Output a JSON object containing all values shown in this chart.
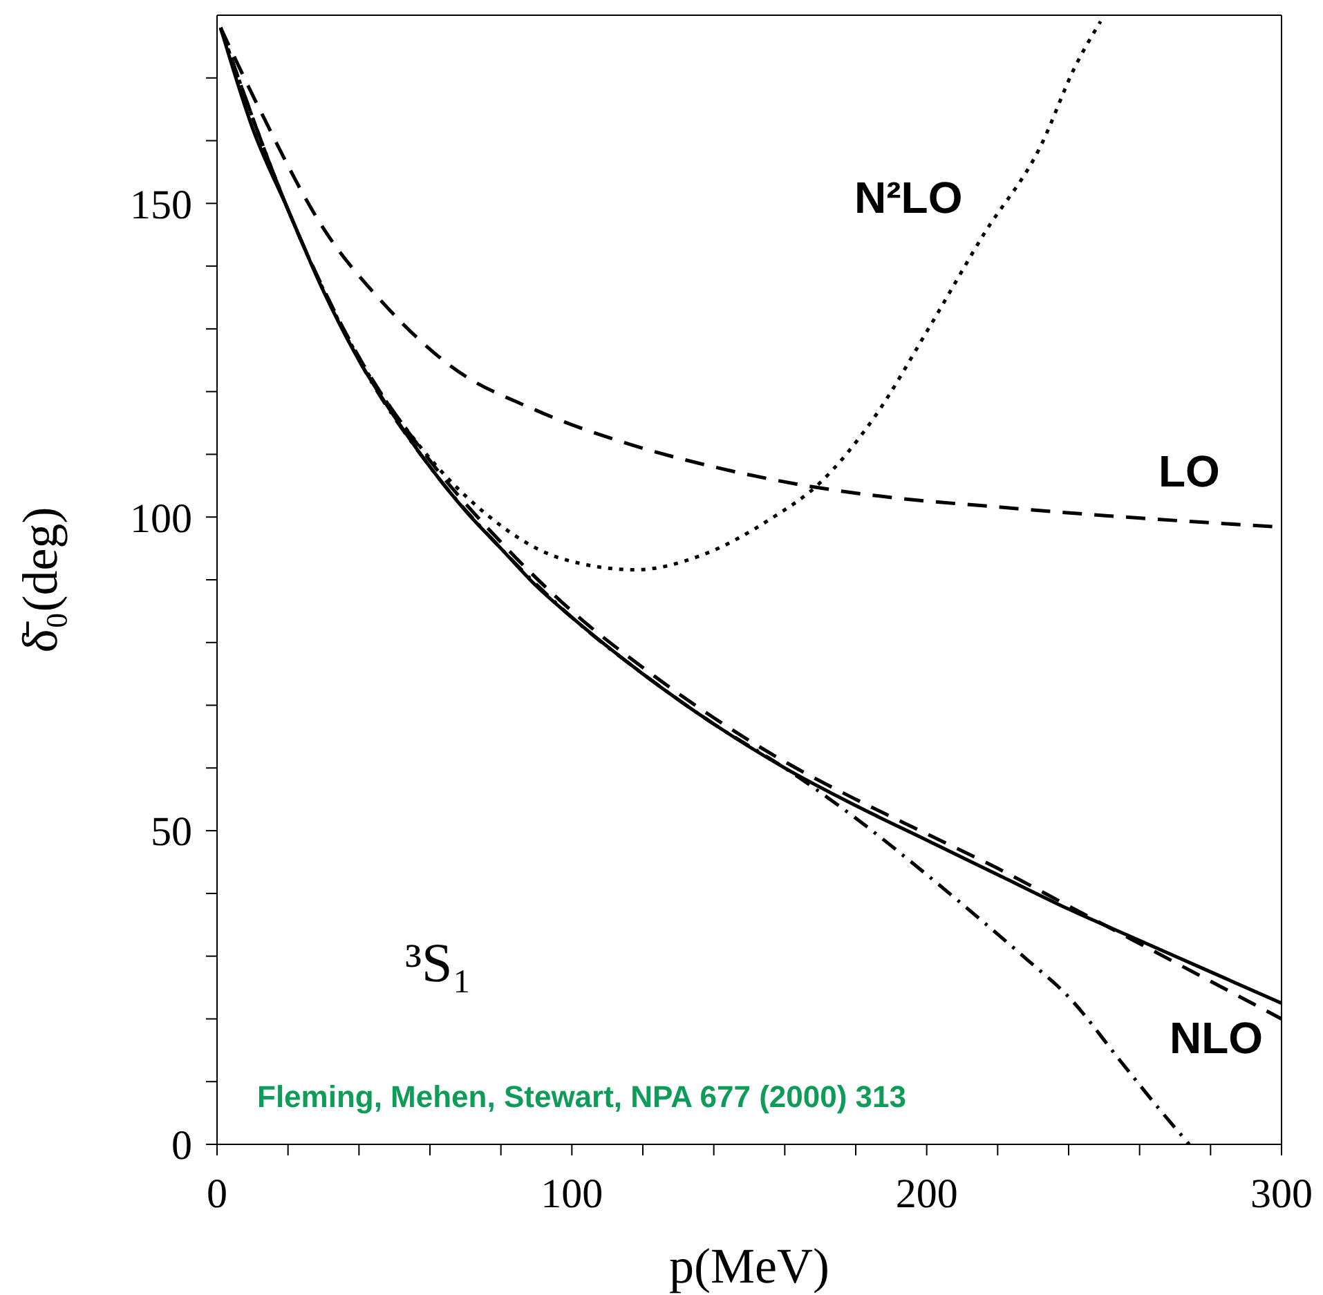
{
  "chart_data": {
    "type": "line",
    "xlabel": "p(MeV)",
    "ylabel": "δ̄₀(deg)",
    "xlim": [
      0,
      300
    ],
    "ylim": [
      0,
      180
    ],
    "xticks": [
      0,
      {
        "value": 20,
        "label": null
      },
      {
        "value": 40,
        "label": null
      },
      {
        "value": 60,
        "label": null
      },
      {
        "value": 80,
        "label": null
      },
      100,
      {
        "value": 120,
        "label": null
      },
      {
        "value": 140,
        "label": null
      },
      {
        "value": 160,
        "label": null
      },
      {
        "value": 180,
        "label": null
      },
      200,
      {
        "value": 220,
        "label": null
      },
      {
        "value": 240,
        "label": null
      },
      {
        "value": 260,
        "label": null
      },
      {
        "value": 280,
        "label": null
      },
      300
    ],
    "yticks": [
      0,
      {
        "value": 10,
        "label": null
      },
      {
        "value": 20,
        "label": null
      },
      {
        "value": 30,
        "label": null
      },
      {
        "value": 40,
        "label": null
      },
      50,
      {
        "value": 60,
        "label": null
      },
      {
        "value": 70,
        "label": null
      },
      {
        "value": 80,
        "label": null
      },
      {
        "value": 90,
        "label": null
      },
      100,
      {
        "value": 110,
        "label": null
      },
      {
        "value": 120,
        "label": null
      },
      {
        "value": 130,
        "label": null
      },
      {
        "value": 140,
        "label": null
      },
      150,
      {
        "value": 160,
        "label": null
      },
      {
        "value": 170,
        "label": null
      }
    ],
    "legend": false,
    "marker": "none",
    "series": [
      {
        "color": "#000000",
        "line_style": "solid",
        "x": [
          1,
          10,
          20,
          30,
          40,
          50,
          60,
          70,
          80,
          90,
          100,
          120,
          140,
          160,
          180,
          200,
          220,
          240,
          260,
          280,
          300
        ],
        "values": [
          178,
          162,
          149,
          136,
          125,
          116,
          108,
          101,
          95,
          89,
          84,
          75,
          67,
          60,
          54,
          48.5,
          43,
          37.5,
          32.5,
          27.5,
          22.5
        ]
      },
      {
        "name": "NLO",
        "color": "#000000",
        "line_style": "dashed",
        "x": [
          1,
          20,
          40,
          60,
          80,
          100,
          120,
          140,
          160,
          180,
          200,
          220,
          240,
          260,
          280,
          300
        ],
        "values": [
          178,
          149,
          125.5,
          109,
          96,
          85,
          76,
          68,
          61,
          55,
          49.5,
          44,
          38,
          32,
          26,
          20
        ]
      },
      {
        "name": "LO",
        "color": "#000000",
        "line_style": "dashed",
        "x": [
          1,
          12,
          30,
          47,
          66,
          90,
          114,
          140,
          166,
          192,
          218,
          251,
          300
        ],
        "values": [
          178,
          165,
          146,
          134,
          124,
          117,
          112,
          108,
          105,
          103,
          101.7,
          100.2,
          98.4
        ]
      },
      {
        "name": "N²LO",
        "color": "#000000",
        "line_style": "dotted",
        "x": [
          1,
          20,
          40,
          57,
          76,
          97,
          118,
          136,
          156,
          170,
          185,
          201,
          216,
          232,
          242,
          249
        ],
        "values": [
          178,
          149,
          125.3,
          111.4,
          100.4,
          93.4,
          91.6,
          93.8,
          99.7,
          105.5,
          115.7,
          130.5,
          145,
          159,
          172,
          179
        ]
      },
      {
        "color": "#000000",
        "line_style": "dashdot",
        "x": [
          1,
          20,
          40,
          60,
          80,
          100,
          120,
          140,
          160,
          180,
          200,
          220,
          228,
          240,
          255,
          265,
          274
        ],
        "values": [
          178,
          149,
          125,
          108,
          95,
          84,
          75,
          67,
          60,
          52,
          43,
          33.5,
          29.6,
          23.5,
          13,
          6,
          0
        ]
      }
    ],
    "annotations": [
      "³S₁",
      "Fleming, Mehen, Stewart, NPA 677 (2000) 313"
    ]
  }
}
